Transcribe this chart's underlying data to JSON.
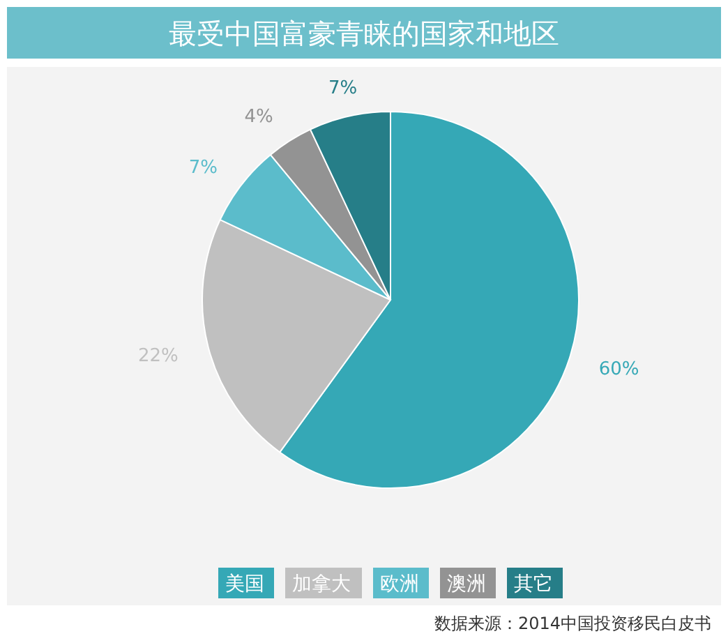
{
  "chart_data": {
    "type": "pie",
    "title": "最受中国富豪青睐的国家和地区",
    "categories": [
      "美国",
      "加拿大",
      "欧洲",
      "澳洲",
      "其它"
    ],
    "values": [
      60,
      22,
      7,
      4,
      7
    ],
    "colors": [
      "#35a8b6",
      "#c0c0c0",
      "#5bbccb",
      "#939393",
      "#267e88"
    ],
    "value_labels": [
      "60%",
      "22%",
      "7%",
      "4%",
      "7%"
    ],
    "legend": "bottom",
    "annotations": [
      "数据来源：2014中国投资移民白皮书"
    ]
  }
}
